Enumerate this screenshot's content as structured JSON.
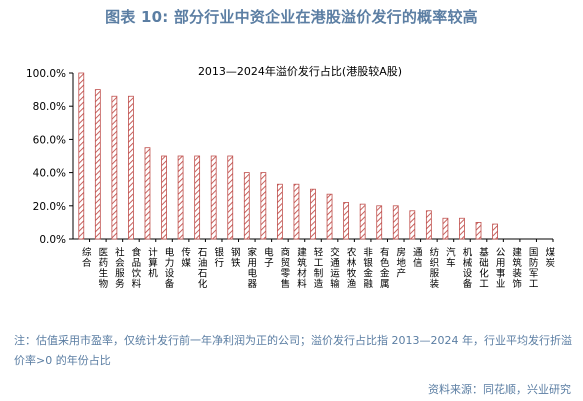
{
  "header": {
    "title": "图表 10: 部分行业中资企业在港股溢价发行的概率较高"
  },
  "chart_data": {
    "type": "bar",
    "title": "2013—2024年溢价发行占比(港股较A股)",
    "categories": [
      "综合",
      "医药生物",
      "社会服务",
      "食品饮料",
      "计算机",
      "电力设备",
      "传媒",
      "石油石化",
      "银行",
      "钢铁",
      "家用电器",
      "电子",
      "商贸零售",
      "建筑材料",
      "轻工制造",
      "交通运输",
      "农林牧渔",
      "非银金融",
      "有色金属",
      "房地产",
      "通信",
      "纺织服装",
      "汽车",
      "机械设备",
      "基础化工",
      "公用事业",
      "建筑装饰",
      "国防军工",
      "煤炭"
    ],
    "values": [
      100,
      90,
      86,
      86,
      55,
      50,
      50,
      50,
      50,
      50,
      40,
      40,
      33,
      33,
      30,
      27,
      22,
      21,
      20,
      20,
      17,
      17,
      12.5,
      12.5,
      10,
      9,
      0,
      0,
      0
    ],
    "ylim": [
      0,
      100
    ],
    "yticks": [
      "0.0%",
      "20.0%",
      "40.0%",
      "60.0%",
      "80.0%",
      "100.0%"
    ],
    "colors": {
      "bar_stroke": "#c0504d",
      "bar_fill": "#ffffff",
      "title_text": "#5b7ea3"
    },
    "grid": false,
    "legend": "none"
  },
  "footer": {
    "note": "注：估值采用市盈率，仅统计发行前一年净利润为正的公司；溢价发行占比指 2013—2024 年，行业平均发行折溢价率>0 的年份占比",
    "source": "资料来源：同花顺，兴业研究"
  }
}
